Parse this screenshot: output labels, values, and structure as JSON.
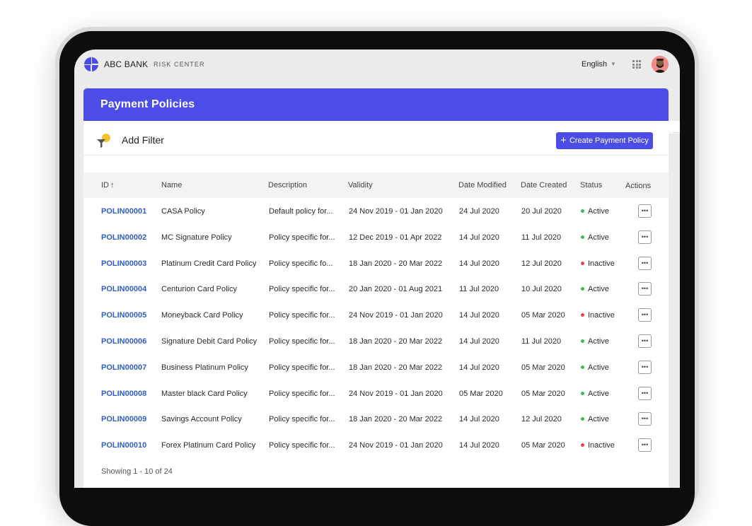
{
  "app": {
    "bank_name": "ABC BANK",
    "product_name": "RISK CENTER",
    "language": "English",
    "accent_color": "#4b4de6",
    "link_color": "#2f5cc9"
  },
  "page": {
    "title": "Payment Policies",
    "add_filter": "Add Filter",
    "create_button": "Create Payment Policy"
  },
  "table": {
    "headers": {
      "id": "ID",
      "name": "Name",
      "description": "Description",
      "validity": "Validity",
      "date_modified": "Date Modified",
      "date_created": "Date Created",
      "status": "Status",
      "actions": "Actions"
    },
    "status_colors": {
      "Active": "#3cb95a",
      "Inactive": "#e0455b"
    },
    "rows": [
      {
        "id": "POLIN00001",
        "name": "CASA  Policy",
        "description": "Default policy for...",
        "validity": "24 Nov 2019  - 01 Jan 2020",
        "date_modified": "24 Jul 2020",
        "date_created": "20 Jul 2020",
        "status": "Active"
      },
      {
        "id": "POLIN00002",
        "name": "MC Signature Policy",
        "description": "Policy specific for...",
        "validity": "12 Dec 2019  - 01 Apr 2022",
        "date_modified": "14 Jul 2020",
        "date_created": "11 Jul 2020",
        "status": "Active"
      },
      {
        "id": "POLIN00003",
        "name": "Platinum Credit Card Policy",
        "description": "Policy specific fo...",
        "validity": "18 Jan 2020  - 20 Mar 2022",
        "date_modified": "14 Jul 2020",
        "date_created": "12 Jul 2020",
        "status": "Inactive"
      },
      {
        "id": "POLIN00004",
        "name": "Centurion Card Policy",
        "description": "Policy specific for...",
        "validity": "20 Jan 2020  - 01 Aug 2021",
        "date_modified": "11 Jul 2020",
        "date_created": "10 Jul 2020",
        "status": "Active"
      },
      {
        "id": "POLIN00005",
        "name": "Moneyback Card Policy",
        "description": "Policy specific for...",
        "validity": "24 Nov 2019  - 01 Jan 2020",
        "date_modified": "14 Jul 2020",
        "date_created": "05 Mar 2020",
        "status": "Inactive"
      },
      {
        "id": "POLIN00006",
        "name": "Signature Debit Card Policy",
        "description": "Policy specific for...",
        "validity": "18 Jan 2020  - 20 Mar 2022",
        "date_modified": "14 Jul 2020",
        "date_created": "11 Jul 2020",
        "status": "Active"
      },
      {
        "id": "POLIN00007",
        "name": "Business Platinum Policy",
        "description": "Policy specific for...",
        "validity": "18 Jan 2020  - 20 Mar 2022",
        "date_modified": "14 Jul 2020",
        "date_created": "05 Mar 2020",
        "status": "Active"
      },
      {
        "id": "POLIN00008",
        "name": "Master black Card Policy",
        "description": "Policy specific for...",
        "validity": "24 Nov 2019  - 01 Jan 2020",
        "date_modified": "05 Mar 2020",
        "date_created": "05 Mar 2020",
        "status": "Active"
      },
      {
        "id": "POLIN00009",
        "name": "Savings Account Policy",
        "description": "Policy specific for...",
        "validity": "18 Jan 2020  - 20 Mar 2022",
        "date_modified": "14 Jul 2020",
        "date_created": "12 Jul 2020",
        "status": "Active"
      },
      {
        "id": "POLIN00010",
        "name": "Forex Platinum Card Policy",
        "description": "Policy specific for...",
        "validity": "24 Nov 2019  - 01 Jan 2020",
        "date_modified": "14 Jul 2020",
        "date_created": "05 Mar 2020",
        "status": "Inactive"
      }
    ],
    "action_icon": "more-horizontal-icon",
    "action_glyph": "•••"
  },
  "footer": {
    "showing": "Showing 1 - 10 of 24"
  }
}
